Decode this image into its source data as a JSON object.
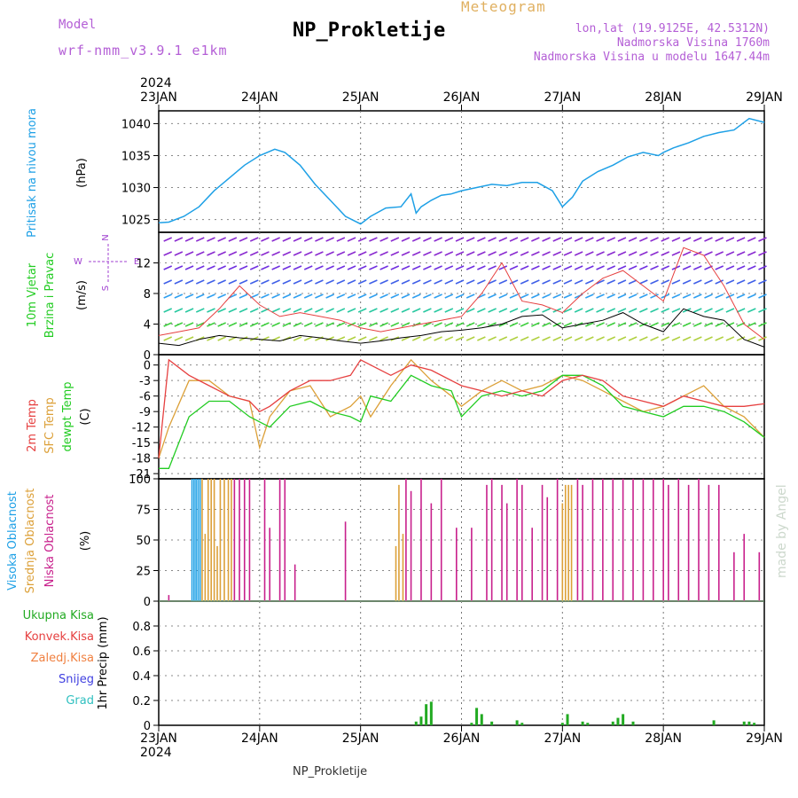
{
  "header": {
    "model_label": "Model",
    "model_name": "wrf-nmm_v3.9.1 e1km",
    "title": "NP_Prokletije",
    "meteogram": "Meteogram",
    "lonlat": "lon,lat (19.9125E, 42.5312N)",
    "altitude": "Nadmorska Visina 1760m",
    "model_altitude": "Nadmorska Visina u modelu 1647.44m"
  },
  "footer": {
    "station": "NP_Prokletije",
    "credit": "made by Angel"
  },
  "colors": {
    "pressure": "#1ea0e6",
    "temp2m": "#e64040",
    "sfc": "#dca038",
    "dew": "#22cc22",
    "low_cloud": "#c8208c",
    "mid_cloud": "#dca038",
    "high_cloud": "#1ea0e6",
    "purple": "#a040d0",
    "precip_total": "#22aa22"
  },
  "time_axis": {
    "year": "2024",
    "labels": [
      "23JAN",
      "24JAN",
      "25JAN",
      "26JAN",
      "27JAN",
      "28JAN",
      "29JAN"
    ]
  },
  "chart_data": [
    {
      "type": "line",
      "name": "pressure",
      "ylabel": [
        "Pritisak na nivou mora",
        "(hPa)"
      ],
      "ylim": [
        1023,
        1042
      ],
      "yticks": [
        1025,
        1030,
        1035,
        1040
      ],
      "x_days": [
        0,
        0.1,
        0.25,
        0.4,
        0.55,
        0.7,
        0.85,
        1.0,
        1.15,
        1.25,
        1.4,
        1.55,
        1.7,
        1.85,
        2.0,
        2.1,
        2.25,
        2.4,
        2.5,
        2.55,
        2.6,
        2.7,
        2.8,
        2.9,
        3.0,
        3.15,
        3.3,
        3.45,
        3.6,
        3.75,
        3.9,
        4.0,
        4.1,
        4.2,
        4.35,
        4.5,
        4.65,
        4.8,
        4.95,
        5.0,
        5.1,
        5.25,
        5.4,
        5.55,
        5.7,
        5.85,
        6.0
      ],
      "values": [
        1024.5,
        1024.6,
        1025.5,
        1027.0,
        1029.5,
        1031.5,
        1033.5,
        1035.0,
        1036.0,
        1035.5,
        1033.5,
        1030.5,
        1028.0,
        1025.5,
        1024.3,
        1025.5,
        1026.8,
        1027.0,
        1029.0,
        1026.0,
        1027.0,
        1028.0,
        1028.8,
        1029.0,
        1029.5,
        1030.0,
        1030.5,
        1030.3,
        1030.8,
        1030.8,
        1029.5,
        1027.0,
        1028.5,
        1031.0,
        1032.5,
        1033.5,
        1034.8,
        1035.5,
        1035.0,
        1035.5,
        1036.2,
        1037.0,
        1038.0,
        1038.6,
        1039.0,
        1040.8,
        1040.2
      ]
    },
    {
      "type": "line",
      "name": "wind",
      "ylabel": [
        "10m Vjetar",
        "Brzina i Pravac",
        "(m/s)"
      ],
      "ylim": [
        0,
        16
      ],
      "yticks": [
        0,
        4,
        8,
        12
      ],
      "legend_compass": [
        "N",
        "W",
        "E",
        "S"
      ],
      "x_days": [
        0,
        0.2,
        0.4,
        0.6,
        0.8,
        1.0,
        1.2,
        1.4,
        1.6,
        1.8,
        2.0,
        2.2,
        2.4,
        2.6,
        2.8,
        3.0,
        3.2,
        3.4,
        3.6,
        3.8,
        4.0,
        4.2,
        4.4,
        4.6,
        4.8,
        5.0,
        5.2,
        5.4,
        5.6,
        5.8,
        6.0
      ],
      "values": [
        1.5,
        1.2,
        2.0,
        2.5,
        2.2,
        2.0,
        1.8,
        2.5,
        2.2,
        1.8,
        1.5,
        1.8,
        2.2,
        2.5,
        3.0,
        3.2,
        3.5,
        4.0,
        5.0,
        5.2,
        3.5,
        4.0,
        4.5,
        5.5,
        4.0,
        3.0,
        6.0,
        5.0,
        4.5,
        2.0,
        1.0
      ],
      "gust_values": [
        2.5,
        3.0,
        3.5,
        6.0,
        9.0,
        6.5,
        5.0,
        5.5,
        5.0,
        4.5,
        3.5,
        3.0,
        3.5,
        4.0,
        4.5,
        5.0,
        8.0,
        12.0,
        7.0,
        6.5,
        5.5,
        8.0,
        10.0,
        11.0,
        9.0,
        7.0,
        14.0,
        13.0,
        9.0,
        4.0,
        2.0
      ]
    },
    {
      "type": "line",
      "name": "temperature",
      "ylabel": [
        "2m Temp",
        "SFC Temp",
        "dewpt Temp",
        "(C)"
      ],
      "series_names": [
        "2m Temp",
        "SFC Temp",
        "dewpt Temp"
      ],
      "ylim": [
        -22,
        2
      ],
      "yticks": [
        0,
        -3,
        -6,
        -9,
        -12,
        -15,
        -18,
        -21
      ],
      "x_days": [
        0,
        0.1,
        0.3,
        0.5,
        0.7,
        0.9,
        1.0,
        1.1,
        1.3,
        1.5,
        1.7,
        1.9,
        2.0,
        2.1,
        2.3,
        2.5,
        2.7,
        2.9,
        3.0,
        3.2,
        3.4,
        3.6,
        3.8,
        4.0,
        4.2,
        4.4,
        4.6,
        4.8,
        5.0,
        5.2,
        5.4,
        5.6,
        5.8,
        6.0
      ],
      "temp2m": [
        -18,
        1,
        -2,
        -4,
        -6,
        -7,
        -9,
        -8,
        -5,
        -3,
        -3,
        -2,
        1,
        0,
        -2,
        0,
        -1,
        -3,
        -4,
        -5,
        -6,
        -5,
        -6,
        -3,
        -2,
        -3,
        -6,
        -7,
        -8,
        -6,
        -7,
        -8,
        -8,
        -7.5
      ],
      "sfc": [
        -18,
        -12,
        -3,
        -3,
        -6,
        -7,
        -16,
        -10,
        -5,
        -4,
        -10,
        -8,
        -6,
        -10,
        -4,
        1,
        -3,
        -6,
        -8,
        -5,
        -3,
        -5,
        -4,
        -2,
        -3,
        -5,
        -7,
        -9,
        -8,
        -6,
        -4,
        -8,
        -10,
        -14
      ],
      "dew": [
        -20,
        -20,
        -10,
        -7,
        -7,
        -10,
        -11,
        -12,
        -8,
        -7,
        -9,
        -10,
        -11,
        -6,
        -7,
        -2,
        -4,
        -5,
        -10,
        -6,
        -5,
        -6,
        -5,
        -2,
        -2,
        -4,
        -8,
        -9,
        -10,
        -8,
        -8,
        -9,
        -11,
        -14
      ]
    },
    {
      "type": "bar",
      "name": "clouds",
      "ylabel": [
        "Visoka Oblacnost",
        "Srednja Oblacnost",
        "Niska Oblacnost",
        "(%)"
      ],
      "series_names": [
        "Visoka Oblacnost",
        "Srednja Oblacnost",
        "Niska Oblacnost"
      ],
      "ylim": [
        0,
        100
      ],
      "yticks": [
        0,
        25,
        50,
        75,
        100
      ],
      "high_x": [
        0.33,
        0.35,
        0.37,
        0.39,
        0.41
      ],
      "high_v": [
        100,
        100,
        100,
        100,
        100
      ],
      "mid_x": [
        0.43,
        0.46,
        0.49,
        0.52,
        0.55,
        0.58,
        0.61,
        0.65,
        0.69,
        0.72,
        2.35,
        2.38,
        2.42,
        4.0,
        4.03,
        4.06,
        4.09
      ],
      "mid_v": [
        100,
        55,
        100,
        100,
        100,
        45,
        100,
        100,
        100,
        100,
        45,
        95,
        55,
        80,
        95,
        95,
        95
      ],
      "low_x": [
        0.1,
        0.75,
        0.8,
        0.85,
        0.9,
        1.05,
        1.1,
        1.2,
        1.25,
        1.35,
        1.85,
        2.45,
        2.5,
        2.6,
        2.7,
        2.8,
        2.95,
        3.1,
        3.25,
        3.3,
        3.4,
        3.45,
        3.55,
        3.6,
        3.7,
        3.8,
        3.85,
        3.95,
        4.15,
        4.2,
        4.3,
        4.4,
        4.5,
        4.6,
        4.7,
        4.8,
        4.9,
        5.0,
        5.05,
        5.15,
        5.25,
        5.35,
        5.45,
        5.55,
        5.7,
        5.8,
        5.95
      ],
      "low_v": [
        5,
        100,
        100,
        100,
        100,
        100,
        60,
        100,
        100,
        30,
        65,
        100,
        90,
        100,
        80,
        100,
        60,
        60,
        95,
        100,
        95,
        80,
        100,
        95,
        60,
        95,
        85,
        100,
        100,
        95,
        100,
        100,
        100,
        100,
        100,
        100,
        100,
        100,
        95,
        100,
        95,
        100,
        95,
        95,
        40,
        55,
        40
      ]
    },
    {
      "type": "bar",
      "name": "precipitation",
      "ylabel": [
        "1hr Precip (mm)"
      ],
      "series_names": [
        "Ukupna Kisa",
        "Konvek.Kisa",
        "Zaledj.Kisa",
        "Snijeg",
        "Grad"
      ],
      "ylim": [
        0,
        1.0
      ],
      "yticks": [
        0,
        0.2,
        0.4,
        0.6,
        0.8
      ],
      "x": [
        2.55,
        2.6,
        2.65,
        2.7,
        3.1,
        3.15,
        3.2,
        3.3,
        3.55,
        3.6,
        4.0,
        4.05,
        4.2,
        4.25,
        4.5,
        4.55,
        4.6,
        4.7,
        5.5,
        5.8,
        5.85,
        5.9
      ],
      "values": [
        0.03,
        0.07,
        0.17,
        0.19,
        0.02,
        0.14,
        0.09,
        0.03,
        0.04,
        0.02,
        0.02,
        0.09,
        0.03,
        0.02,
        0.03,
        0.06,
        0.09,
        0.03,
        0.04,
        0.03,
        0.03,
        0.02
      ]
    }
  ]
}
